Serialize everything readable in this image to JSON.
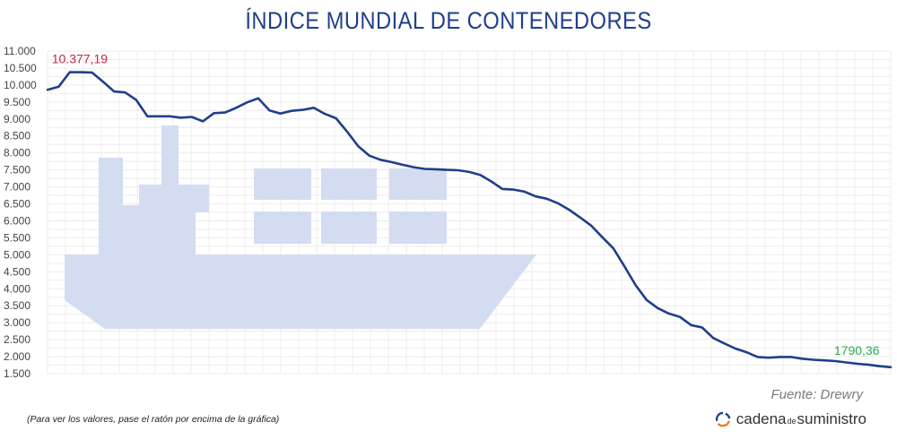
{
  "chart_data": {
    "type": "line",
    "title": "ÍNDICE MUNDIAL DE CONTENEDORES",
    "ylim": [
      1500,
      11000
    ],
    "yticks": [
      11000,
      10500,
      10000,
      9500,
      9000,
      8500,
      8000,
      7500,
      7000,
      6500,
      6000,
      5500,
      5000,
      4500,
      4000,
      3500,
      3000,
      2500,
      2000,
      1500
    ],
    "ytick_labels": [
      "11.000",
      "10.500",
      "10.000",
      "9.500",
      "9.000",
      "8.500",
      "8.000",
      "7.500",
      "7.000",
      "6.500",
      "6.000",
      "5.500",
      "5.000",
      "4.500",
      "4.000",
      "3.500",
      "3.000",
      "2.500",
      "2.000",
      "1.500"
    ],
    "grid": true,
    "series": [
      {
        "color": "#1f3f8c",
        "values": [
          9860,
          9950,
          10377.19,
          10377,
          10370,
          10100,
          9810,
          9780,
          9560,
          9080,
          9080,
          9080,
          9040,
          9060,
          8930,
          9170,
          9190,
          9330,
          9490,
          9610,
          9250,
          9160,
          9240,
          9270,
          9330,
          9150,
          9020,
          8630,
          8200,
          7920,
          7800,
          7730,
          7650,
          7580,
          7530,
          7520,
          7500,
          7490,
          7440,
          7350,
          7160,
          6940,
          6920,
          6860,
          6720,
          6650,
          6520,
          6330,
          6100,
          5860,
          5520,
          5190,
          4660,
          4110,
          3670,
          3430,
          3270,
          3170,
          2930,
          2860,
          2550,
          2390,
          2240,
          2130,
          1990,
          1970,
          1990,
          1990,
          1940,
          1910,
          1890,
          1870,
          1830,
          1790.36,
          1760,
          1720,
          1690
        ]
      }
    ],
    "annotations": [
      {
        "text": "10.377,19",
        "point_index": 2,
        "color": "#c62847"
      },
      {
        "text": "1790,36",
        "point_index": 73,
        "color": "#2eab55"
      }
    ]
  },
  "footer": {
    "source": "Fuente: Drewry",
    "note": "(Para ver los valores, pase el ratón por encima de la gráfica)",
    "brand_part1": "cadena",
    "brand_part2": "de",
    "brand_part3": "suministro"
  }
}
